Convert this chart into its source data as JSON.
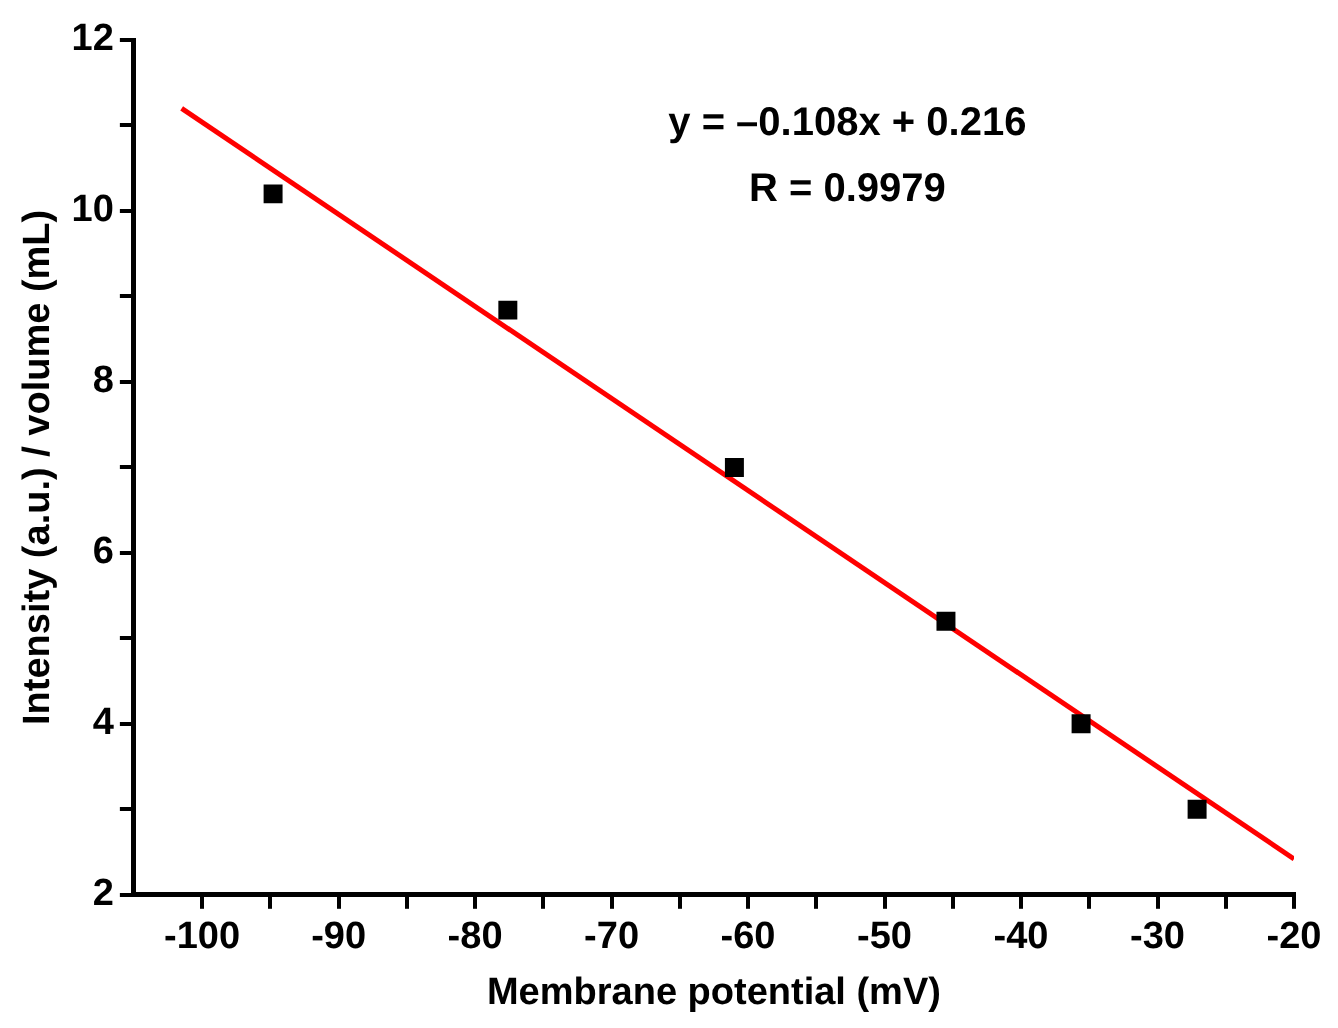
{
  "chart_data": {
    "type": "scatter",
    "xlabel": "Membrane potential (mV)",
    "ylabel": "Intensity (a.u.) / volume (mL)",
    "x": [
      -94.8,
      -77.6,
      -61.0,
      -45.5,
      -35.6,
      -27.1
    ],
    "series": [
      {
        "color": "#000000",
        "marker": "square",
        "values": [
          10.2,
          8.84,
          7.0,
          5.2,
          4.0,
          3.0
        ]
      },
      {
        "type": "line",
        "color": "#ff0000",
        "marker": "none",
        "x": [
          -101.5,
          -20
        ],
        "values": [
          11.2,
          2.42
        ]
      }
    ],
    "xlim": [
      -105,
      -20
    ],
    "xticks": [
      -100,
      {
        "value": -95,
        "label": null
      },
      -90,
      {
        "value": -85,
        "label": null
      },
      -80,
      {
        "value": -75,
        "label": null
      },
      -70,
      {
        "value": -65,
        "label": null
      },
      -60,
      {
        "value": -55,
        "label": null
      },
      -50,
      {
        "value": -45,
        "label": null
      },
      -40,
      {
        "value": -35,
        "label": null
      },
      -30,
      {
        "value": -25,
        "label": null
      },
      -20
    ],
    "ylim": [
      2,
      12
    ],
    "yticks": [
      2,
      {
        "value": 3,
        "label": null
      },
      4,
      {
        "value": 5,
        "label": null
      },
      6,
      {
        "value": 7,
        "label": null
      },
      8,
      {
        "value": 9,
        "label": null
      },
      10,
      {
        "value": 11,
        "label": null
      },
      12
    ],
    "annotations": [
      "y = –0.108x + 0.216",
      "R = 0.9979"
    ],
    "grid": false,
    "legend": false
  }
}
